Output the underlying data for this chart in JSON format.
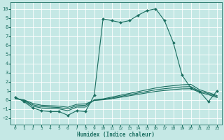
{
  "title": "",
  "xlabel": "Humidex (Indice chaleur)",
  "bg_color": "#c5e8e5",
  "grid_color": "#ffffff",
  "line_color": "#1a6e60",
  "xlim": [
    -0.5,
    23.5
  ],
  "ylim": [
    -2.7,
    10.7
  ],
  "xticks": [
    0,
    1,
    2,
    3,
    4,
    5,
    6,
    7,
    8,
    9,
    10,
    11,
    12,
    13,
    14,
    15,
    16,
    17,
    18,
    19,
    20,
    21,
    22,
    23
  ],
  "yticks": [
    -2,
    -1,
    0,
    1,
    2,
    3,
    4,
    5,
    6,
    7,
    8,
    9,
    10
  ],
  "main_x": [
    0,
    1,
    2,
    3,
    4,
    5,
    6,
    7,
    8,
    9,
    10,
    11,
    12,
    13,
    14,
    15,
    16,
    17,
    18,
    19,
    20,
    21,
    22,
    23
  ],
  "main_y": [
    0.3,
    -0.2,
    -0.9,
    -1.2,
    -1.3,
    -1.3,
    -1.7,
    -1.2,
    -1.3,
    0.5,
    8.9,
    8.7,
    8.5,
    8.7,
    9.3,
    9.8,
    10.0,
    8.7,
    6.3,
    2.7,
    1.3,
    0.9,
    -0.2,
    1.0
  ],
  "line2_y": [
    0.2,
    -0.1,
    -0.7,
    -0.9,
    -0.95,
    -1.0,
    -1.2,
    -0.8,
    -0.8,
    0.0,
    0.1,
    0.3,
    0.5,
    0.7,
    0.9,
    1.1,
    1.3,
    1.45,
    1.55,
    1.65,
    1.7,
    1.1,
    0.8,
    0.45
  ],
  "line3_y": [
    0.15,
    -0.05,
    -0.55,
    -0.75,
    -0.8,
    -0.85,
    -1.0,
    -0.65,
    -0.6,
    -0.05,
    0.05,
    0.2,
    0.38,
    0.56,
    0.74,
    0.92,
    1.1,
    1.22,
    1.32,
    1.42,
    1.45,
    0.95,
    0.68,
    0.35
  ],
  "line4_y": [
    0.1,
    0.0,
    -0.4,
    -0.6,
    -0.65,
    -0.7,
    -0.82,
    -0.5,
    -0.45,
    -0.08,
    0.0,
    0.12,
    0.28,
    0.44,
    0.6,
    0.76,
    0.92,
    1.02,
    1.12,
    1.2,
    1.22,
    0.82,
    0.56,
    0.25
  ]
}
